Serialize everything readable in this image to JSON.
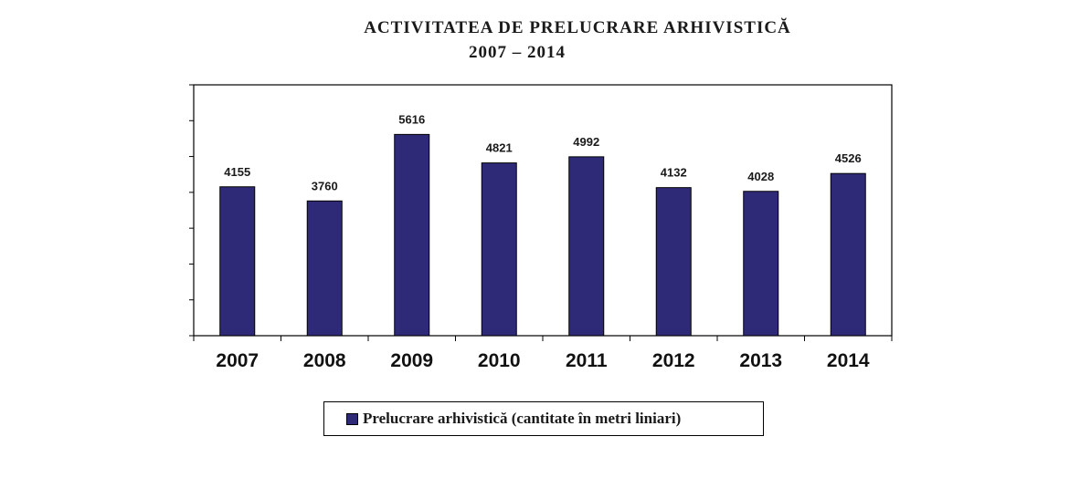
{
  "chart_data": {
    "type": "bar",
    "title": [
      "ACTIVITATEA DE PRELUCRARE ARHIVISTICĂ",
      "2007 – 2014"
    ],
    "categories": [
      "2007",
      "2008",
      "2009",
      "2010",
      "2011",
      "2012",
      "2013",
      "2014"
    ],
    "series": [
      {
        "name": "Prelucrare arhivistică (cantitate în metri liniari)",
        "values": [
          4155,
          3760,
          5616,
          4821,
          4992,
          4132,
          4028,
          4526
        ],
        "labels": [
          "4155",
          "3760",
          "5616",
          "4821",
          "4992",
          "4132",
          "4028",
          "4526"
        ],
        "color": "#2e2a78"
      }
    ],
    "ylim": [
      0,
      7000
    ],
    "ytick_step": 1000,
    "ytick_labels_visible": false,
    "grid": false,
    "legend_position": "bottom",
    "plot_background": "#ffffff",
    "bar_edge_color": "#000000"
  }
}
